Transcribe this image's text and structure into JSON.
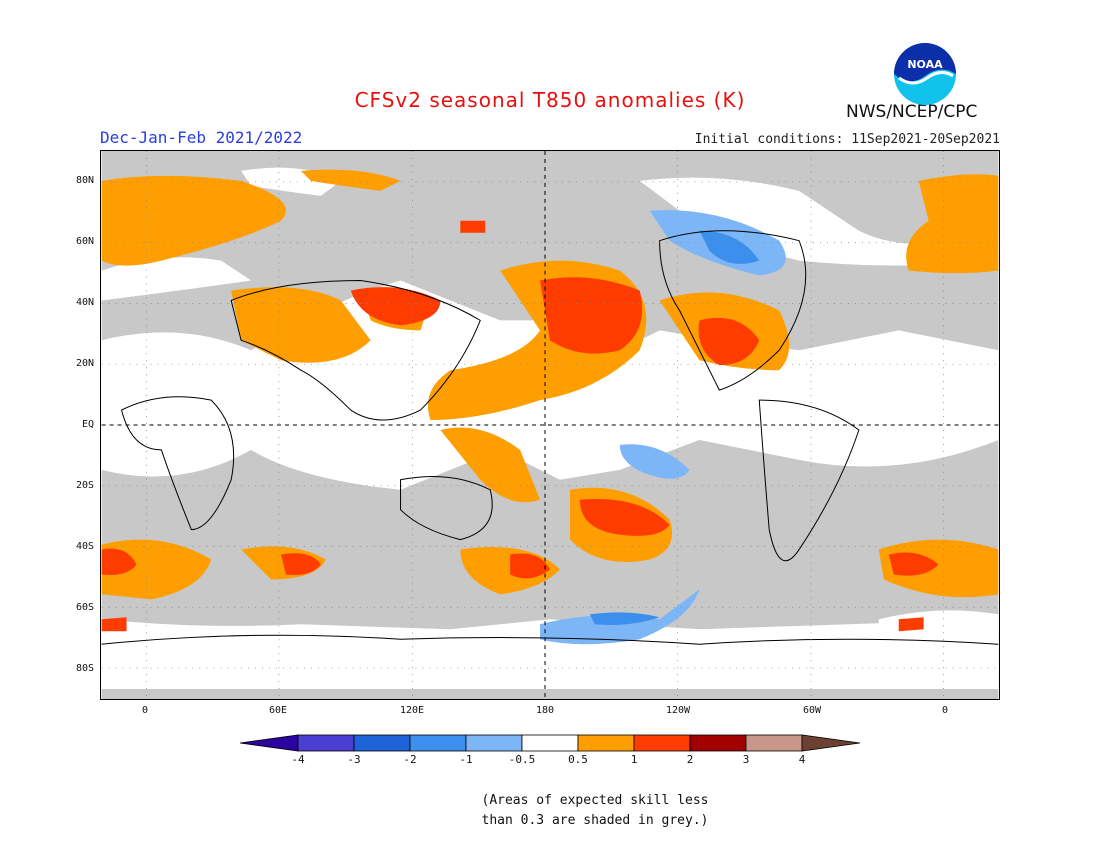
{
  "header": {
    "title": "CFSv2 seasonal T850 anomalies (K)",
    "season": "Dec-Jan-Feb 2021/2022",
    "initial_conditions": "Initial conditions: 11Sep2021-20Sep2021",
    "agency": "NWS/NCEP/CPC",
    "logo_text": "NOAA"
  },
  "map": {
    "lat_labels": [
      "80N",
      "60N",
      "40N",
      "20N",
      "EQ",
      "20S",
      "40S",
      "60S",
      "80S"
    ],
    "lon_labels": [
      "0",
      "60E",
      "120E",
      "180",
      "120W",
      "60W",
      "0"
    ]
  },
  "colorbar": {
    "labels": [
      "-4",
      "-3",
      "-2",
      "-1",
      "-0.5",
      "0.5",
      "1",
      "2",
      "3",
      "4"
    ],
    "colors": [
      "#2b05a0",
      "#4a3fd0",
      "#1e64d8",
      "#3d8fee",
      "#7db6f6",
      "#ffffff",
      "#ff9e00",
      "#ff3c00",
      "#a20000",
      "#c8978a",
      "#6b4232"
    ]
  },
  "legend_colors": {
    "grey": "#c8c8c8",
    "orange": "#ff9e00",
    "red": "#ff3c00",
    "light_blue": "#7db6f6",
    "blue": "#3d8fee"
  },
  "footnote": {
    "line1": "(Areas of expected skill less",
    "line2": "than 0.3 are shaded in grey.)"
  }
}
